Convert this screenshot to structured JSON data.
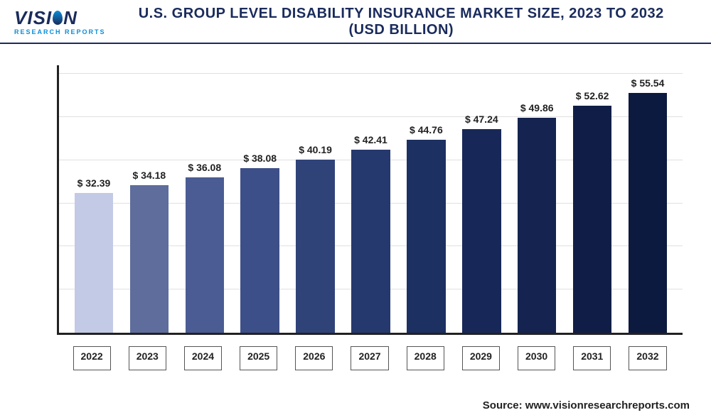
{
  "header": {
    "logo_main_prefix": "VISI",
    "logo_main_suffix": "N",
    "logo_sub": "RESEARCH REPORTS",
    "title": "U.S. GROUP LEVEL DISABILITY INSURANCE MARKET SIZE, 2023 TO 2032 (USD BILLION)"
  },
  "chart": {
    "type": "bar",
    "categories": [
      "2022",
      "2023",
      "2024",
      "2025",
      "2026",
      "2027",
      "2028",
      "2029",
      "2030",
      "2031",
      "2032"
    ],
    "values": [
      32.39,
      34.18,
      36.08,
      38.08,
      40.19,
      42.41,
      44.76,
      47.24,
      49.86,
      52.62,
      55.54
    ],
    "value_labels": [
      "$ 32.39",
      "$ 34.18",
      "$ 36.08",
      "$ 38.08",
      "$ 40.19",
      "$ 42.41",
      "$ 44.76",
      "$ 47.24",
      "$ 49.86",
      "$ 52.62",
      "$ 55.54"
    ],
    "bar_colors": [
      "#c3cae6",
      "#5e6d9c",
      "#4a5c93",
      "#3d4f88",
      "#2f4379",
      "#26396e",
      "#1d3062",
      "#172858",
      "#142350",
      "#101e47",
      "#0d1a3f"
    ],
    "ylim": [
      0,
      62
    ],
    "grid_positions": [
      10,
      20,
      30,
      40,
      50,
      60
    ],
    "background_color": "#ffffff",
    "grid_color": "#e0e0e0",
    "axis_color": "#222222",
    "label_fontsize": 14,
    "label_color": "#222222",
    "bar_width_pct": 70
  },
  "source": {
    "prefix": "Source: ",
    "url": "www.visionresearchreports.com"
  }
}
